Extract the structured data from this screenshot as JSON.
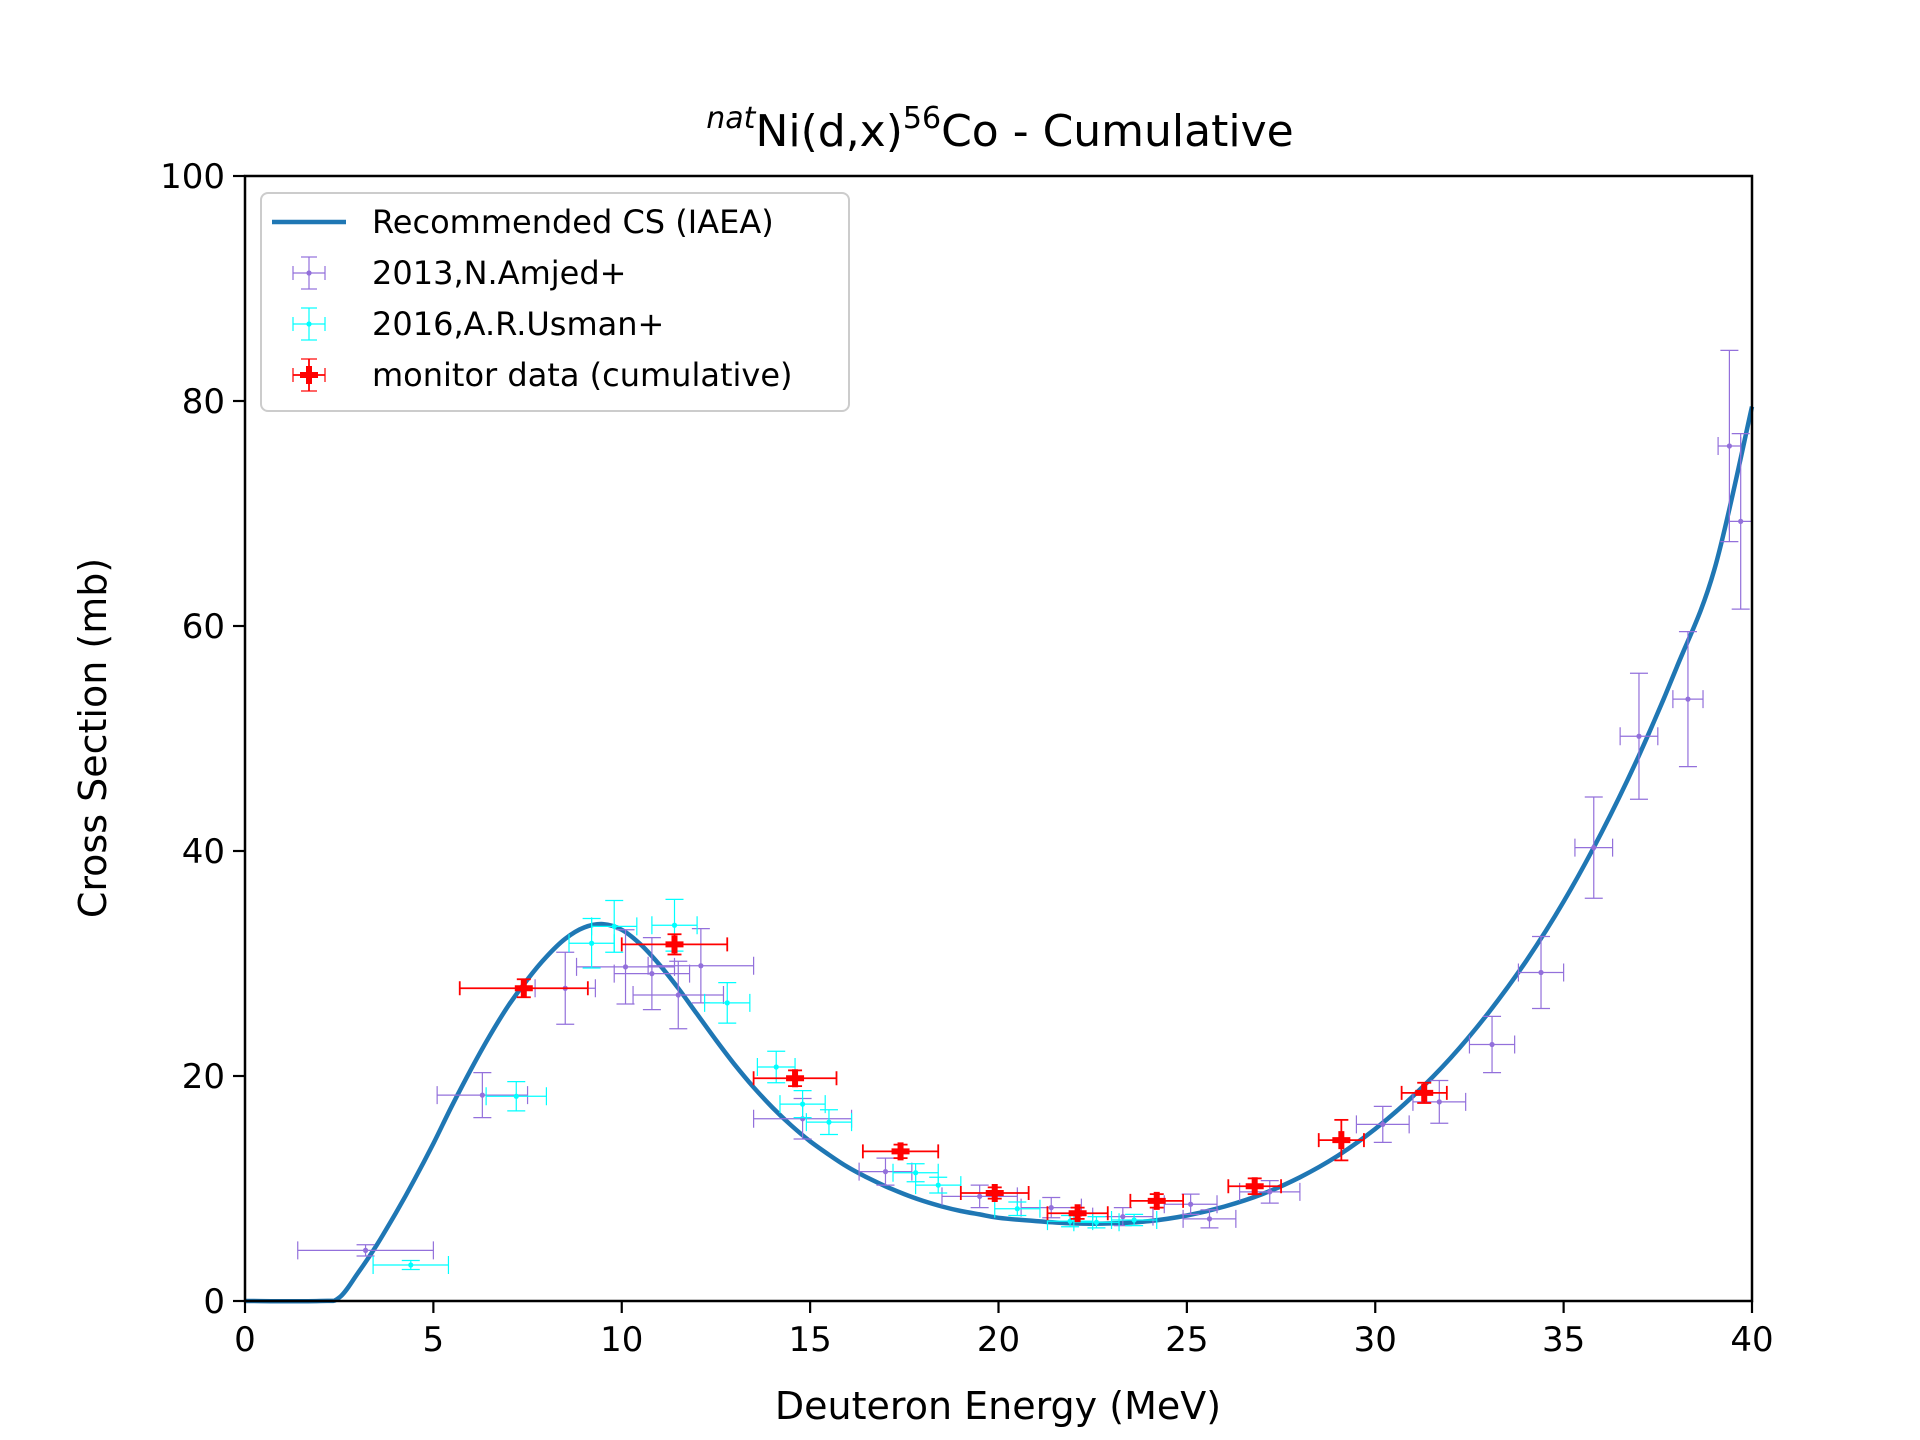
{
  "chart_data": {
    "type": "scatter",
    "title": {
      "sup_prefix": "nat",
      "element": "Ni(d,x)",
      "sup_mass": "56",
      "product": "Co - Cumulative"
    },
    "xlabel": "Deuteron Energy (MeV)",
    "ylabel": "Cross Section (mb)",
    "xlim": [
      0,
      40
    ],
    "ylim": [
      0,
      100
    ],
    "xticks": [
      0,
      5,
      10,
      15,
      20,
      25,
      30,
      35,
      40
    ],
    "xtick_labels": [
      "0",
      "5",
      "10",
      "15",
      "20",
      "25",
      "30",
      "35",
      "40"
    ],
    "yticks": [
      0,
      20,
      40,
      60,
      80,
      100
    ],
    "ytick_labels": [
      "0",
      "20",
      "40",
      "60",
      "80",
      "100"
    ],
    "grid": false,
    "legend_position": "upper-left",
    "curve": {
      "name": "Recommended CS (IAEA)",
      "color": "#1f77b4",
      "x": [
        0,
        2.0,
        2.5,
        3.0,
        3.5,
        4.0,
        4.5,
        5.0,
        5.5,
        6.0,
        6.5,
        7.0,
        7.5,
        8.0,
        8.5,
        9.0,
        9.5,
        10.0,
        10.5,
        11.0,
        11.5,
        12.0,
        12.5,
        13.0,
        13.5,
        14.0,
        14.5,
        15.0,
        15.5,
        16.0,
        16.5,
        17.0,
        17.5,
        18.0,
        18.5,
        19.0,
        19.5,
        20.0,
        21.0,
        22.0,
        23.0,
        24.0,
        25.0,
        26.0,
        27.0,
        28.0,
        29.0,
        30.0,
        31.0,
        32.0,
        33.0,
        34.0,
        35.0,
        36.0,
        37.0,
        38.0,
        39.0,
        40.0
      ],
      "y": [
        0,
        0,
        0.3,
        2.5,
        5.0,
        7.8,
        10.8,
        14.0,
        17.4,
        20.6,
        23.6,
        26.3,
        28.6,
        30.6,
        32.2,
        33.2,
        33.5,
        33.0,
        31.7,
        29.9,
        27.8,
        25.5,
        23.2,
        21.0,
        19.0,
        17.2,
        15.6,
        14.2,
        13.0,
        11.9,
        11.0,
        10.2,
        9.5,
        8.9,
        8.4,
        8.0,
        7.7,
        7.4,
        7.1,
        6.9,
        6.9,
        7.1,
        7.6,
        8.4,
        9.5,
        11.0,
        12.9,
        15.3,
        18.2,
        21.6,
        25.6,
        30.2,
        35.5,
        41.6,
        48.5,
        56.3,
        65.0,
        79.5
      ]
    },
    "series": [
      {
        "name": "2013,N.Amjed+",
        "color": "#9370db",
        "points": [
          {
            "x": 3.2,
            "y": 4.5,
            "xerr": 1.8,
            "yerr": 0.5
          },
          {
            "x": 6.3,
            "y": 18.3,
            "xerr": 1.2,
            "yerr": 2.0
          },
          {
            "x": 8.5,
            "y": 27.8,
            "xerr": 0.8,
            "yerr": 3.2
          },
          {
            "x": 10.1,
            "y": 29.7,
            "xerr": 1.3,
            "yerr": 3.3
          },
          {
            "x": 10.8,
            "y": 29.1,
            "xerr": 1.0,
            "yerr": 3.2
          },
          {
            "x": 11.5,
            "y": 27.2,
            "xerr": 1.2,
            "yerr": 3.0
          },
          {
            "x": 12.1,
            "y": 29.8,
            "xerr": 1.4,
            "yerr": 3.3
          },
          {
            "x": 14.8,
            "y": 16.2,
            "xerr": 1.3,
            "yerr": 1.8
          },
          {
            "x": 17.0,
            "y": 11.5,
            "xerr": 0.7,
            "yerr": 1.2
          },
          {
            "x": 19.5,
            "y": 9.3,
            "xerr": 1.0,
            "yerr": 1.0
          },
          {
            "x": 21.4,
            "y": 8.3,
            "xerr": 0.8,
            "yerr": 0.9
          },
          {
            "x": 23.3,
            "y": 7.5,
            "xerr": 0.8,
            "yerr": 0.8
          },
          {
            "x": 25.1,
            "y": 8.6,
            "xerr": 0.7,
            "yerr": 0.9
          },
          {
            "x": 25.6,
            "y": 7.3,
            "xerr": 0.7,
            "yerr": 0.8
          },
          {
            "x": 27.2,
            "y": 9.7,
            "xerr": 0.8,
            "yerr": 1.0
          },
          {
            "x": 30.2,
            "y": 15.7,
            "xerr": 0.7,
            "yerr": 1.6
          },
          {
            "x": 31.7,
            "y": 17.7,
            "xerr": 0.7,
            "yerr": 1.9
          },
          {
            "x": 33.1,
            "y": 22.8,
            "xerr": 0.6,
            "yerr": 2.5
          },
          {
            "x": 34.4,
            "y": 29.2,
            "xerr": 0.6,
            "yerr": 3.2
          },
          {
            "x": 35.8,
            "y": 40.3,
            "xerr": 0.5,
            "yerr": 4.5
          },
          {
            "x": 37.0,
            "y": 50.2,
            "xerr": 0.5,
            "yerr": 5.6
          },
          {
            "x": 38.3,
            "y": 53.5,
            "xerr": 0.4,
            "yerr": 6.0
          },
          {
            "x": 39.4,
            "y": 76.0,
            "xerr": 0.3,
            "yerr": 8.5
          },
          {
            "x": 39.7,
            "y": 69.3,
            "xerr": 0.3,
            "yerr": 7.8
          }
        ]
      },
      {
        "name": "2016,A.R.Usman+",
        "color": "#00ffff",
        "points": [
          {
            "x": 4.4,
            "y": 3.2,
            "xerr": 1.0,
            "yerr": 0.4
          },
          {
            "x": 7.2,
            "y": 18.2,
            "xerr": 0.8,
            "yerr": 1.3
          },
          {
            "x": 9.2,
            "y": 31.8,
            "xerr": 0.6,
            "yerr": 2.2
          },
          {
            "x": 9.8,
            "y": 33.3,
            "xerr": 0.6,
            "yerr": 2.3
          },
          {
            "x": 11.4,
            "y": 33.4,
            "xerr": 0.6,
            "yerr": 2.3
          },
          {
            "x": 12.8,
            "y": 26.5,
            "xerr": 0.6,
            "yerr": 1.8
          },
          {
            "x": 14.1,
            "y": 20.8,
            "xerr": 0.5,
            "yerr": 1.4
          },
          {
            "x": 14.8,
            "y": 17.5,
            "xerr": 0.6,
            "yerr": 1.2
          },
          {
            "x": 15.5,
            "y": 15.9,
            "xerr": 0.6,
            "yerr": 1.1
          },
          {
            "x": 17.8,
            "y": 11.4,
            "xerr": 0.6,
            "yerr": 0.8
          },
          {
            "x": 18.4,
            "y": 10.3,
            "xerr": 0.6,
            "yerr": 0.7
          },
          {
            "x": 20.5,
            "y": 8.2,
            "xerr": 0.6,
            "yerr": 0.6
          },
          {
            "x": 21.9,
            "y": 7.1,
            "xerr": 0.6,
            "yerr": 0.5
          },
          {
            "x": 22.6,
            "y": 7.0,
            "xerr": 0.6,
            "yerr": 0.5
          },
          {
            "x": 23.6,
            "y": 7.2,
            "xerr": 0.6,
            "yerr": 0.5
          }
        ]
      },
      {
        "name": "monitor data (cumulative)",
        "color": "#ff0000",
        "points": [
          {
            "x": 7.4,
            "y": 27.8,
            "xerr": 1.7,
            "yerr": 0.8
          },
          {
            "x": 11.4,
            "y": 31.7,
            "xerr": 1.4,
            "yerr": 0.9
          },
          {
            "x": 14.6,
            "y": 19.8,
            "xerr": 1.1,
            "yerr": 0.7
          },
          {
            "x": 17.4,
            "y": 13.3,
            "xerr": 1.0,
            "yerr": 0.6
          },
          {
            "x": 19.9,
            "y": 9.6,
            "xerr": 0.9,
            "yerr": 0.5
          },
          {
            "x": 22.1,
            "y": 7.8,
            "xerr": 0.8,
            "yerr": 0.5
          },
          {
            "x": 24.2,
            "y": 8.9,
            "xerr": 0.7,
            "yerr": 0.6
          },
          {
            "x": 26.8,
            "y": 10.2,
            "xerr": 0.7,
            "yerr": 0.7
          },
          {
            "x": 29.1,
            "y": 14.3,
            "xerr": 0.6,
            "yerr": 1.8
          },
          {
            "x": 31.3,
            "y": 18.5,
            "xerr": 0.6,
            "yerr": 0.9
          }
        ]
      }
    ]
  }
}
